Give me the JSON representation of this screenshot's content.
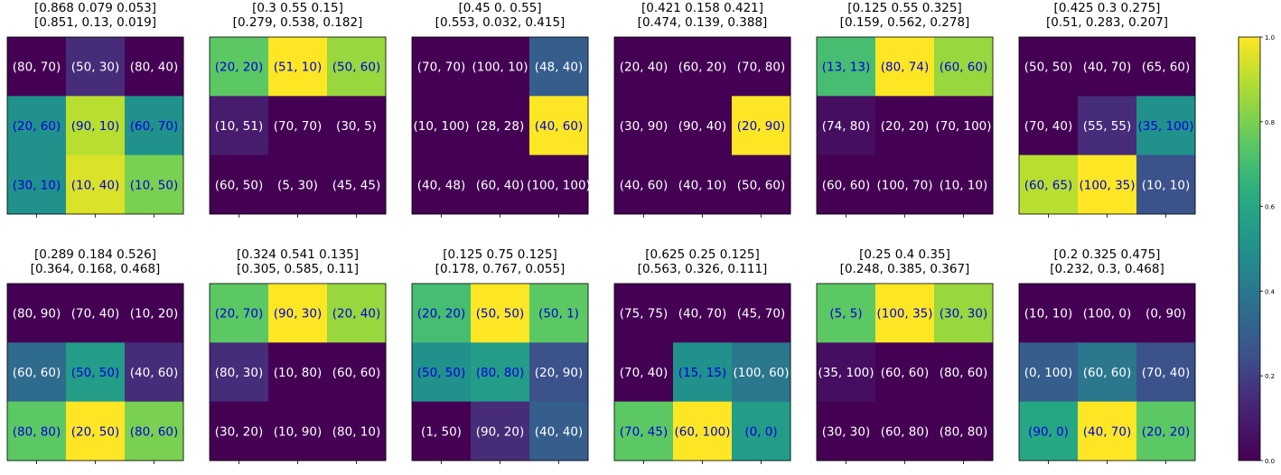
{
  "chart_data": [
    {
      "type": "heatmap",
      "title": [
        "[0.868 0.079 0.053]",
        "[0.851, 0.13, 0.019]"
      ],
      "cells": [
        [
          "(80, 70)",
          "(50, 30)",
          "(80, 40)"
        ],
        [
          "(20, 60)",
          "(90, 10)",
          "(60, 70)"
        ],
        [
          "(30, 10)",
          "(10, 40)",
          "(10, 50)"
        ]
      ],
      "values": [
        [
          0.0,
          0.15,
          0.0
        ],
        [
          0.5,
          0.9,
          0.5
        ],
        [
          0.5,
          0.95,
          0.8
        ]
      ]
    },
    {
      "type": "heatmap",
      "title": [
        "[0.3  0.55 0.15]",
        "[0.279, 0.538, 0.182]"
      ],
      "cells": [
        [
          "(20, 20)",
          "(51, 10)",
          "(50, 60)"
        ],
        [
          "(10, 51)",
          "(70, 70)",
          "(30, 5)"
        ],
        [
          "(60, 50)",
          "(5, 30)",
          "(45, 45)"
        ]
      ],
      "values": [
        [
          0.75,
          1.0,
          0.85
        ],
        [
          0.1,
          0.0,
          0.0
        ],
        [
          0.0,
          0.0,
          0.0
        ]
      ]
    },
    {
      "type": "heatmap",
      "title": [
        "[0.45 0.   0.55]",
        "[0.553, 0.032, 0.415]"
      ],
      "cells": [
        [
          "(70, 70)",
          "(100, 10)",
          "(48, 40)"
        ],
        [
          "(10, 100)",
          "(28, 28)",
          "(40, 60)"
        ],
        [
          "(40, 48)",
          "(60, 40)",
          "(100, 100)"
        ]
      ],
      "values": [
        [
          0.0,
          0.0,
          0.3
        ],
        [
          0.0,
          0.0,
          1.0
        ],
        [
          0.0,
          0.0,
          0.0
        ]
      ]
    },
    {
      "type": "heatmap",
      "title": [
        "[0.421 0.158 0.421]",
        "[0.474, 0.139, 0.388]"
      ],
      "cells": [
        [
          "(20, 40)",
          "(60, 20)",
          "(70, 80)"
        ],
        [
          "(30, 90)",
          "(90, 40)",
          "(20, 90)"
        ],
        [
          "(40, 60)",
          "(40, 10)",
          "(50, 60)"
        ]
      ],
      "values": [
        [
          0.0,
          0.0,
          0.0
        ],
        [
          0.0,
          0.0,
          1.0
        ],
        [
          0.0,
          0.0,
          0.0
        ]
      ]
    },
    {
      "type": "heatmap",
      "title": [
        "[0.125 0.55  0.325]",
        "[0.159, 0.562, 0.278]"
      ],
      "cells": [
        [
          "(13, 13)",
          "(80, 74)",
          "(60, 60)"
        ],
        [
          "(74, 80)",
          "(20, 20)",
          "(70, 100)"
        ],
        [
          "(60, 60)",
          "(100, 70)",
          "(10, 10)"
        ]
      ],
      "values": [
        [
          0.7,
          1.0,
          0.85
        ],
        [
          0.05,
          0.0,
          0.0
        ],
        [
          0.0,
          0.0,
          0.0
        ]
      ]
    },
    {
      "type": "heatmap",
      "title": [
        "[0.425 0.3   0.275]",
        "[0.51, 0.283, 0.207]"
      ],
      "cells": [
        [
          "(50, 50)",
          "(40, 70)",
          "(65, 60)"
        ],
        [
          "(70, 40)",
          "(55, 55)",
          "(35, 100)"
        ],
        [
          "(60, 65)",
          "(100, 35)",
          "(10, 10)"
        ]
      ],
      "values": [
        [
          0.0,
          0.0,
          0.0
        ],
        [
          0.0,
          0.15,
          0.5
        ],
        [
          0.9,
          1.0,
          0.25
        ]
      ]
    },
    {
      "type": "heatmap",
      "title": [
        "[0.289 0.184 0.526]",
        "[0.364, 0.168, 0.468]"
      ],
      "cells": [
        [
          "(80, 90)",
          "(70, 40)",
          "(10, 20)"
        ],
        [
          "(60, 60)",
          "(50, 50)",
          "(40, 60)"
        ],
        [
          "(80, 80)",
          "(20, 50)",
          "(80, 60)"
        ]
      ],
      "values": [
        [
          0.0,
          0.0,
          0.0
        ],
        [
          0.35,
          0.55,
          0.15
        ],
        [
          0.75,
          1.0,
          0.8
        ]
      ]
    },
    {
      "type": "heatmap",
      "title": [
        "[0.324 0.541 0.135]",
        "[0.305, 0.585, 0.11]"
      ],
      "cells": [
        [
          "(20, 70)",
          "(90, 30)",
          "(20, 40)"
        ],
        [
          "(80, 30)",
          "(10, 80)",
          "(60, 60)"
        ],
        [
          "(30, 20)",
          "(10, 90)",
          "(80, 10)"
        ]
      ],
      "values": [
        [
          0.75,
          1.0,
          0.85
        ],
        [
          0.15,
          0.0,
          0.0
        ],
        [
          0.0,
          0.0,
          0.0
        ]
      ]
    },
    {
      "type": "heatmap",
      "title": [
        "[0.125 0.75  0.125]",
        "[0.178, 0.767, 0.055]"
      ],
      "cells": [
        [
          "(20, 20)",
          "(50, 50)",
          "(50, 1)"
        ],
        [
          "(50, 50)",
          "(80, 80)",
          "(20, 90)"
        ],
        [
          "(1, 50)",
          "(90, 20)",
          "(40, 40)"
        ]
      ],
      "values": [
        [
          0.7,
          1.0,
          0.75
        ],
        [
          0.5,
          0.55,
          0.25
        ],
        [
          0.0,
          0.15,
          0.3
        ]
      ]
    },
    {
      "type": "heatmap",
      "title": [
        "[0.625 0.25  0.125]",
        "[0.563, 0.326, 0.111]"
      ],
      "cells": [
        [
          "(75, 75)",
          "(40, 70)",
          "(45, 70)"
        ],
        [
          "(70, 40)",
          "(15, 15)",
          "(100, 60)"
        ],
        [
          "(70, 45)",
          "(60, 100)",
          "(0, 0)"
        ]
      ],
      "values": [
        [
          0.0,
          0.0,
          0.0
        ],
        [
          0.0,
          0.5,
          0.4
        ],
        [
          0.75,
          1.0,
          0.55
        ]
      ]
    },
    {
      "type": "heatmap",
      "title": [
        "[0.25 0.4  0.35]",
        "[0.248, 0.385, 0.367]"
      ],
      "cells": [
        [
          "(5, 5)",
          "(100, 35)",
          "(30, 30)"
        ],
        [
          "(35, 100)",
          "(60, 60)",
          "(80, 60)"
        ],
        [
          "(30, 30)",
          "(60, 80)",
          "(80, 80)"
        ]
      ],
      "values": [
        [
          0.75,
          1.0,
          0.85
        ],
        [
          0.05,
          0.0,
          0.0
        ],
        [
          0.0,
          0.0,
          0.0
        ]
      ]
    },
    {
      "type": "heatmap",
      "title": [
        "[0.2   0.325 0.475]",
        "[0.232, 0.3, 0.468]"
      ],
      "cells": [
        [
          "(10, 10)",
          "(100, 0)",
          "(0, 90)"
        ],
        [
          "(0, 100)",
          "(60, 60)",
          "(70, 40)"
        ],
        [
          "(90, 0)",
          "(40, 70)",
          "(20, 20)"
        ]
      ],
      "values": [
        [
          0.0,
          0.0,
          0.0
        ],
        [
          0.3,
          0.4,
          0.25
        ],
        [
          0.6,
          1.0,
          0.75
        ]
      ]
    }
  ],
  "colorbar": {
    "colormap": "viridis",
    "range": [
      0,
      1
    ],
    "ticks": [
      "0.0",
      "0.2",
      "0.4",
      "0.6",
      "0.8",
      "1.0"
    ]
  }
}
